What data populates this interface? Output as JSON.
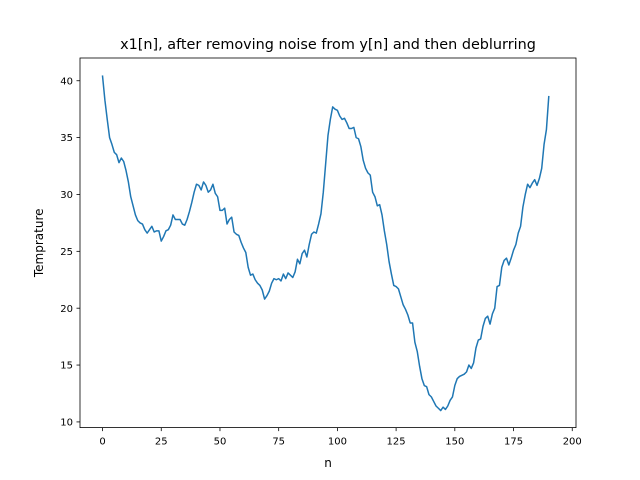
{
  "chart_data": {
    "type": "line",
    "title": "x1[n], after removing noise from y[n] and then deblurring",
    "xlabel": "n",
    "ylabel": "Temprature",
    "xlim": [
      -9.6,
      201.6
    ],
    "ylim": [
      9.5,
      42.0
    ],
    "xticks": [
      0,
      25,
      50,
      75,
      100,
      125,
      150,
      175,
      200
    ],
    "yticks": [
      10,
      15,
      20,
      25,
      30,
      35,
      40
    ],
    "grid": false,
    "series": [
      {
        "color": "#1f77b4",
        "x_start": 0,
        "x_step": 1,
        "values": [
          40.4,
          38.3,
          36.6,
          35.0,
          34.4,
          33.7,
          33.5,
          32.8,
          33.2,
          32.9,
          32.1,
          31.1,
          29.8,
          29.0,
          28.2,
          27.7,
          27.5,
          27.4,
          26.9,
          26.6,
          26.9,
          27.2,
          26.7,
          26.8,
          26.8,
          25.9,
          26.3,
          26.8,
          26.9,
          27.3,
          28.2,
          27.8,
          27.8,
          27.8,
          27.4,
          27.3,
          27.8,
          28.5,
          29.3,
          30.2,
          30.9,
          30.8,
          30.4,
          31.1,
          30.8,
          30.2,
          30.4,
          30.9,
          30.1,
          29.8,
          28.6,
          28.6,
          28.8,
          27.4,
          27.8,
          28.0,
          26.7,
          26.5,
          26.4,
          25.8,
          25.3,
          24.9,
          23.6,
          22.9,
          23.0,
          22.5,
          22.2,
          22.0,
          21.6,
          20.8,
          21.1,
          21.5,
          22.2,
          22.6,
          22.5,
          22.6,
          22.4,
          23.0,
          22.6,
          23.1,
          22.9,
          22.7,
          23.2,
          24.3,
          23.9,
          24.8,
          25.1,
          24.5,
          25.6,
          26.5,
          26.7,
          26.6,
          27.4,
          28.3,
          30.2,
          32.7,
          35.2,
          36.6,
          37.7,
          37.5,
          37.4,
          36.9,
          36.6,
          36.7,
          36.3,
          35.8,
          35.8,
          35.9,
          35.0,
          34.9,
          34.2,
          33.0,
          32.3,
          31.9,
          31.7,
          30.2,
          29.8,
          29.0,
          29.1,
          28.2,
          26.8,
          25.6,
          24.1,
          23.0,
          22.0,
          21.9,
          21.7,
          21.0,
          20.3,
          19.9,
          19.4,
          18.7,
          18.7,
          17.0,
          16.2,
          14.9,
          13.8,
          13.2,
          13.1,
          12.4,
          12.2,
          11.8,
          11.4,
          11.2,
          11.0,
          11.3,
          11.1,
          11.4,
          11.9,
          12.2,
          13.2,
          13.8,
          14.0,
          14.1,
          14.2,
          14.4,
          15.0,
          14.7,
          15.2,
          16.5,
          17.2,
          17.3,
          18.4,
          19.1,
          19.3,
          18.6,
          19.5,
          20.0,
          21.9,
          22.0,
          23.6,
          24.2,
          24.4,
          23.8,
          24.4,
          25.1,
          25.6,
          26.6,
          27.2,
          28.9,
          30.0,
          30.9,
          30.6,
          31.0,
          31.3,
          30.8,
          31.4,
          32.3,
          34.4,
          35.7,
          38.6
        ]
      }
    ]
  }
}
